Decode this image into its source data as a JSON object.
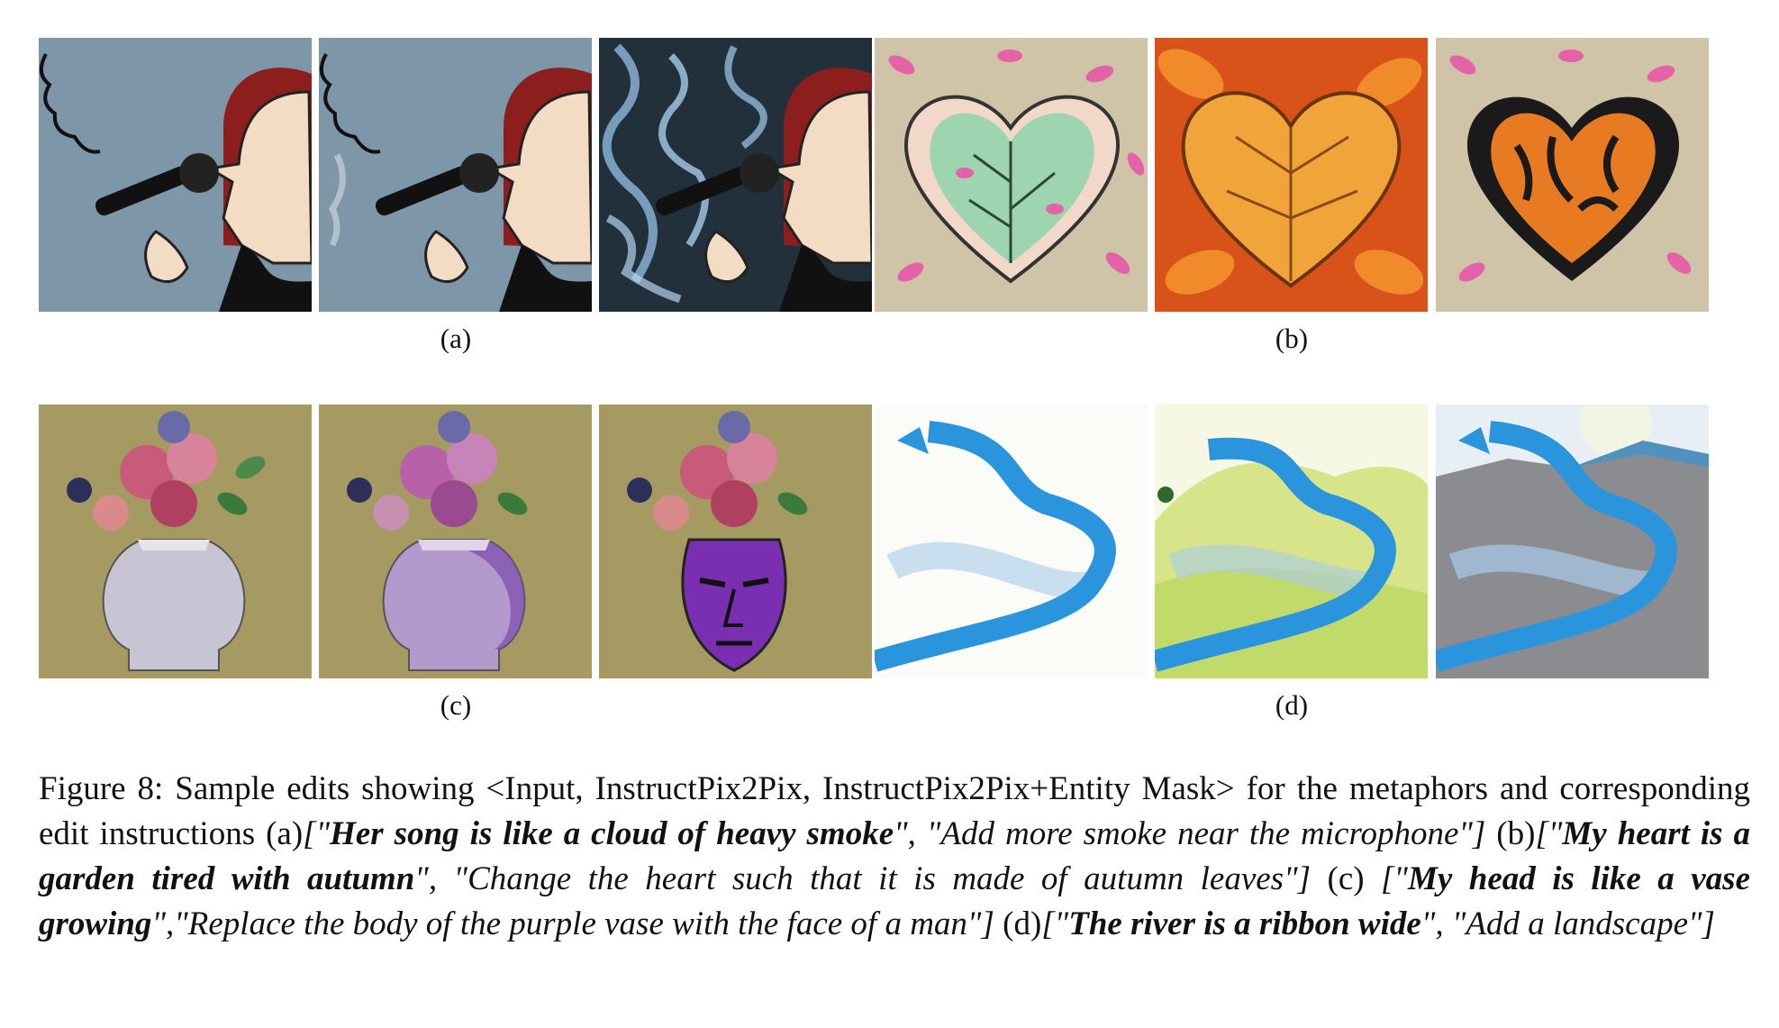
{
  "figure": {
    "label_a": "(a)",
    "label_b": "(b)",
    "label_c": "(c)",
    "label_d": "(d)",
    "caption": {
      "prefix": "Figure 8: Sample edits showing <Input, InstructPix2Pix, InstructPix2Pix+Entity Mask> for the metaphors and corresponding edit instructions ",
      "a_marker": "(a)",
      "a_open": "[\"",
      "a_metaphor": "Her song is like a cloud of heavy smoke",
      "a_instruction": "\", \"Add more smoke near the microphone\"]",
      "b_marker": " (b)",
      "b_open": "[\"",
      "b_metaphor": "My heart is a garden tired with autumn",
      "b_instruction": "\", \"Change the heart such that it is made of autumn leaves\"]",
      "c_marker": " (c) ",
      "c_open": "[\"",
      "c_metaphor": "My head is like a vase growing",
      "c_instruction": "\",\"Replace the body of the purple vase with the face of a man\"]",
      "d_marker": " (d)",
      "d_open": "[\"",
      "d_metaphor": "The river is a ribbon wide",
      "d_instruction": "\", \"Add a landscape\"]"
    }
  },
  "colors": {
    "singer_bg": "#7e97a8",
    "smoke_bg": "#22303c",
    "hair": "#8d1e1e",
    "skin": "#f3dcc4",
    "leaf_bg": "#cfc3a8",
    "autumn_orange": "#e07a1f",
    "olive_bg": "#a69a63",
    "river_blue": "#2a95dc",
    "vase_purple": "#7a2fb3"
  }
}
